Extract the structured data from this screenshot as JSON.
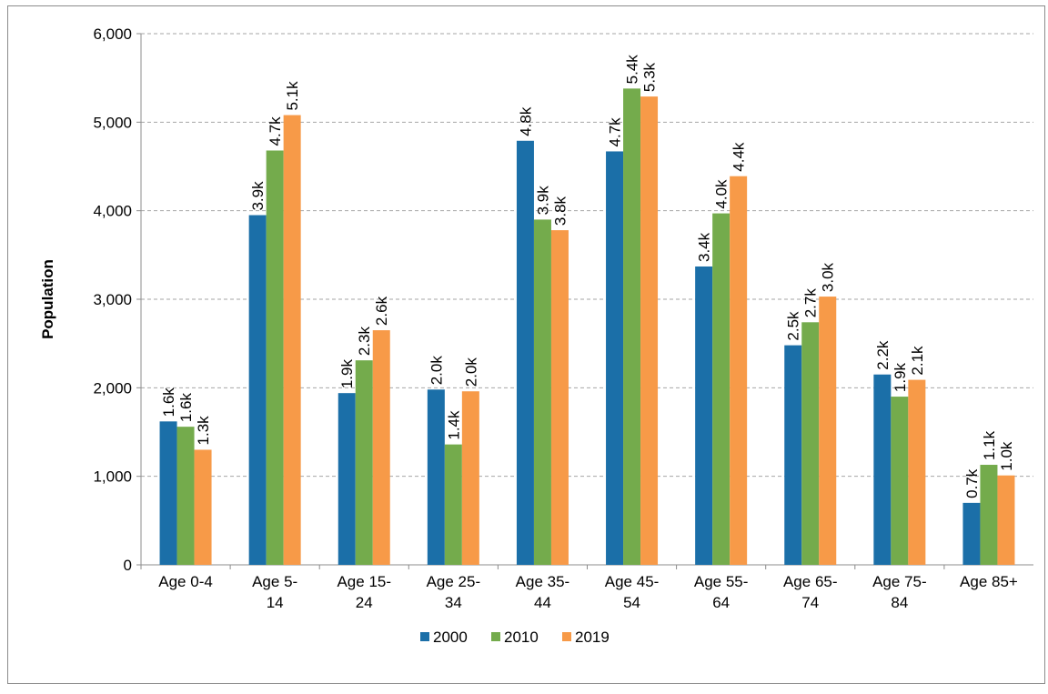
{
  "chart_data": {
    "type": "bar",
    "y_label": "Population",
    "categories": [
      "Age 0-4",
      "Age 5-14",
      "Age 15-24",
      "Age 25-34",
      "Age 35-44",
      "Age 45-54",
      "Age 55-64",
      "Age 65-74",
      "Age 75-84",
      "Age 85+"
    ],
    "series": [
      {
        "name": "2000",
        "color": "#1b6fa8",
        "values": [
          1620,
          3950,
          1940,
          1980,
          4790,
          4670,
          3370,
          2480,
          2150,
          700
        ],
        "value_labels": [
          "1.6k",
          "3.9k",
          "1.9k",
          "2.0k",
          "4.8k",
          "4.7k",
          "3.4k",
          "2.5k",
          "2.2k",
          "0.7k"
        ]
      },
      {
        "name": "2010",
        "color": "#74ab4c",
        "values": [
          1560,
          4680,
          2310,
          1360,
          3900,
          5380,
          3970,
          2740,
          1900,
          1130
        ],
        "value_labels": [
          "1.6k",
          "4.7k",
          "2.3k",
          "1.4k",
          "3.9k",
          "5.4k",
          "4.0k",
          "2.7k",
          "1.9k",
          "1.1k"
        ]
      },
      {
        "name": "2019",
        "color": "#f79a48",
        "values": [
          1300,
          5080,
          2650,
          1960,
          3780,
          5290,
          4390,
          3030,
          2090,
          1010
        ],
        "value_labels": [
          "1.3k",
          "5.1k",
          "2.6k",
          "2.0k",
          "3.8k",
          "5.3k",
          "4.4k",
          "3.0k",
          "2.1k",
          "1.0k"
        ]
      }
    ],
    "ylim": [
      0,
      6000
    ],
    "yticks": [
      0,
      {
        "value": 1000,
        "label": "1,000"
      },
      {
        "value": 2000,
        "label": "2,000"
      },
      {
        "value": 3000,
        "label": "3,000"
      },
      {
        "value": 4000,
        "label": "4,000"
      },
      {
        "value": 5000,
        "label": "5,000"
      },
      {
        "value": 6000,
        "label": "6,000"
      }
    ],
    "grid": true,
    "legend": "bottom"
  }
}
